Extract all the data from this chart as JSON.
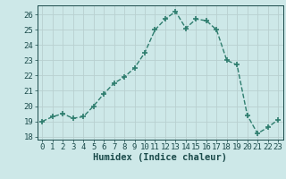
{
  "x": [
    0,
    1,
    2,
    3,
    4,
    5,
    6,
    7,
    8,
    9,
    10,
    11,
    12,
    13,
    14,
    15,
    16,
    17,
    18,
    19,
    20,
    21,
    22,
    23
  ],
  "y": [
    19.0,
    19.3,
    19.5,
    19.2,
    19.3,
    20.0,
    20.8,
    21.5,
    21.9,
    22.5,
    23.5,
    25.0,
    25.7,
    26.2,
    25.1,
    25.7,
    25.6,
    25.0,
    23.0,
    22.7,
    19.4,
    18.2,
    18.6,
    19.1
  ],
  "line_color": "#2e7d6e",
  "marker": "+",
  "marker_size": 4,
  "bg_color": "#cde8e8",
  "grid_color": "#b8d0d0",
  "xlabel": "Humidex (Indice chaleur)",
  "ylim": [
    17.8,
    26.6
  ],
  "xlim": [
    -0.5,
    23.5
  ],
  "yticks": [
    18,
    19,
    20,
    21,
    22,
    23,
    24,
    25,
    26
  ],
  "xticks": [
    0,
    1,
    2,
    3,
    4,
    5,
    6,
    7,
    8,
    9,
    10,
    11,
    12,
    13,
    14,
    15,
    16,
    17,
    18,
    19,
    20,
    21,
    22,
    23
  ],
  "font_color": "#1a4a4a",
  "linewidth": 1.0,
  "tick_fontsize": 6.5,
  "xlabel_fontsize": 7.5
}
